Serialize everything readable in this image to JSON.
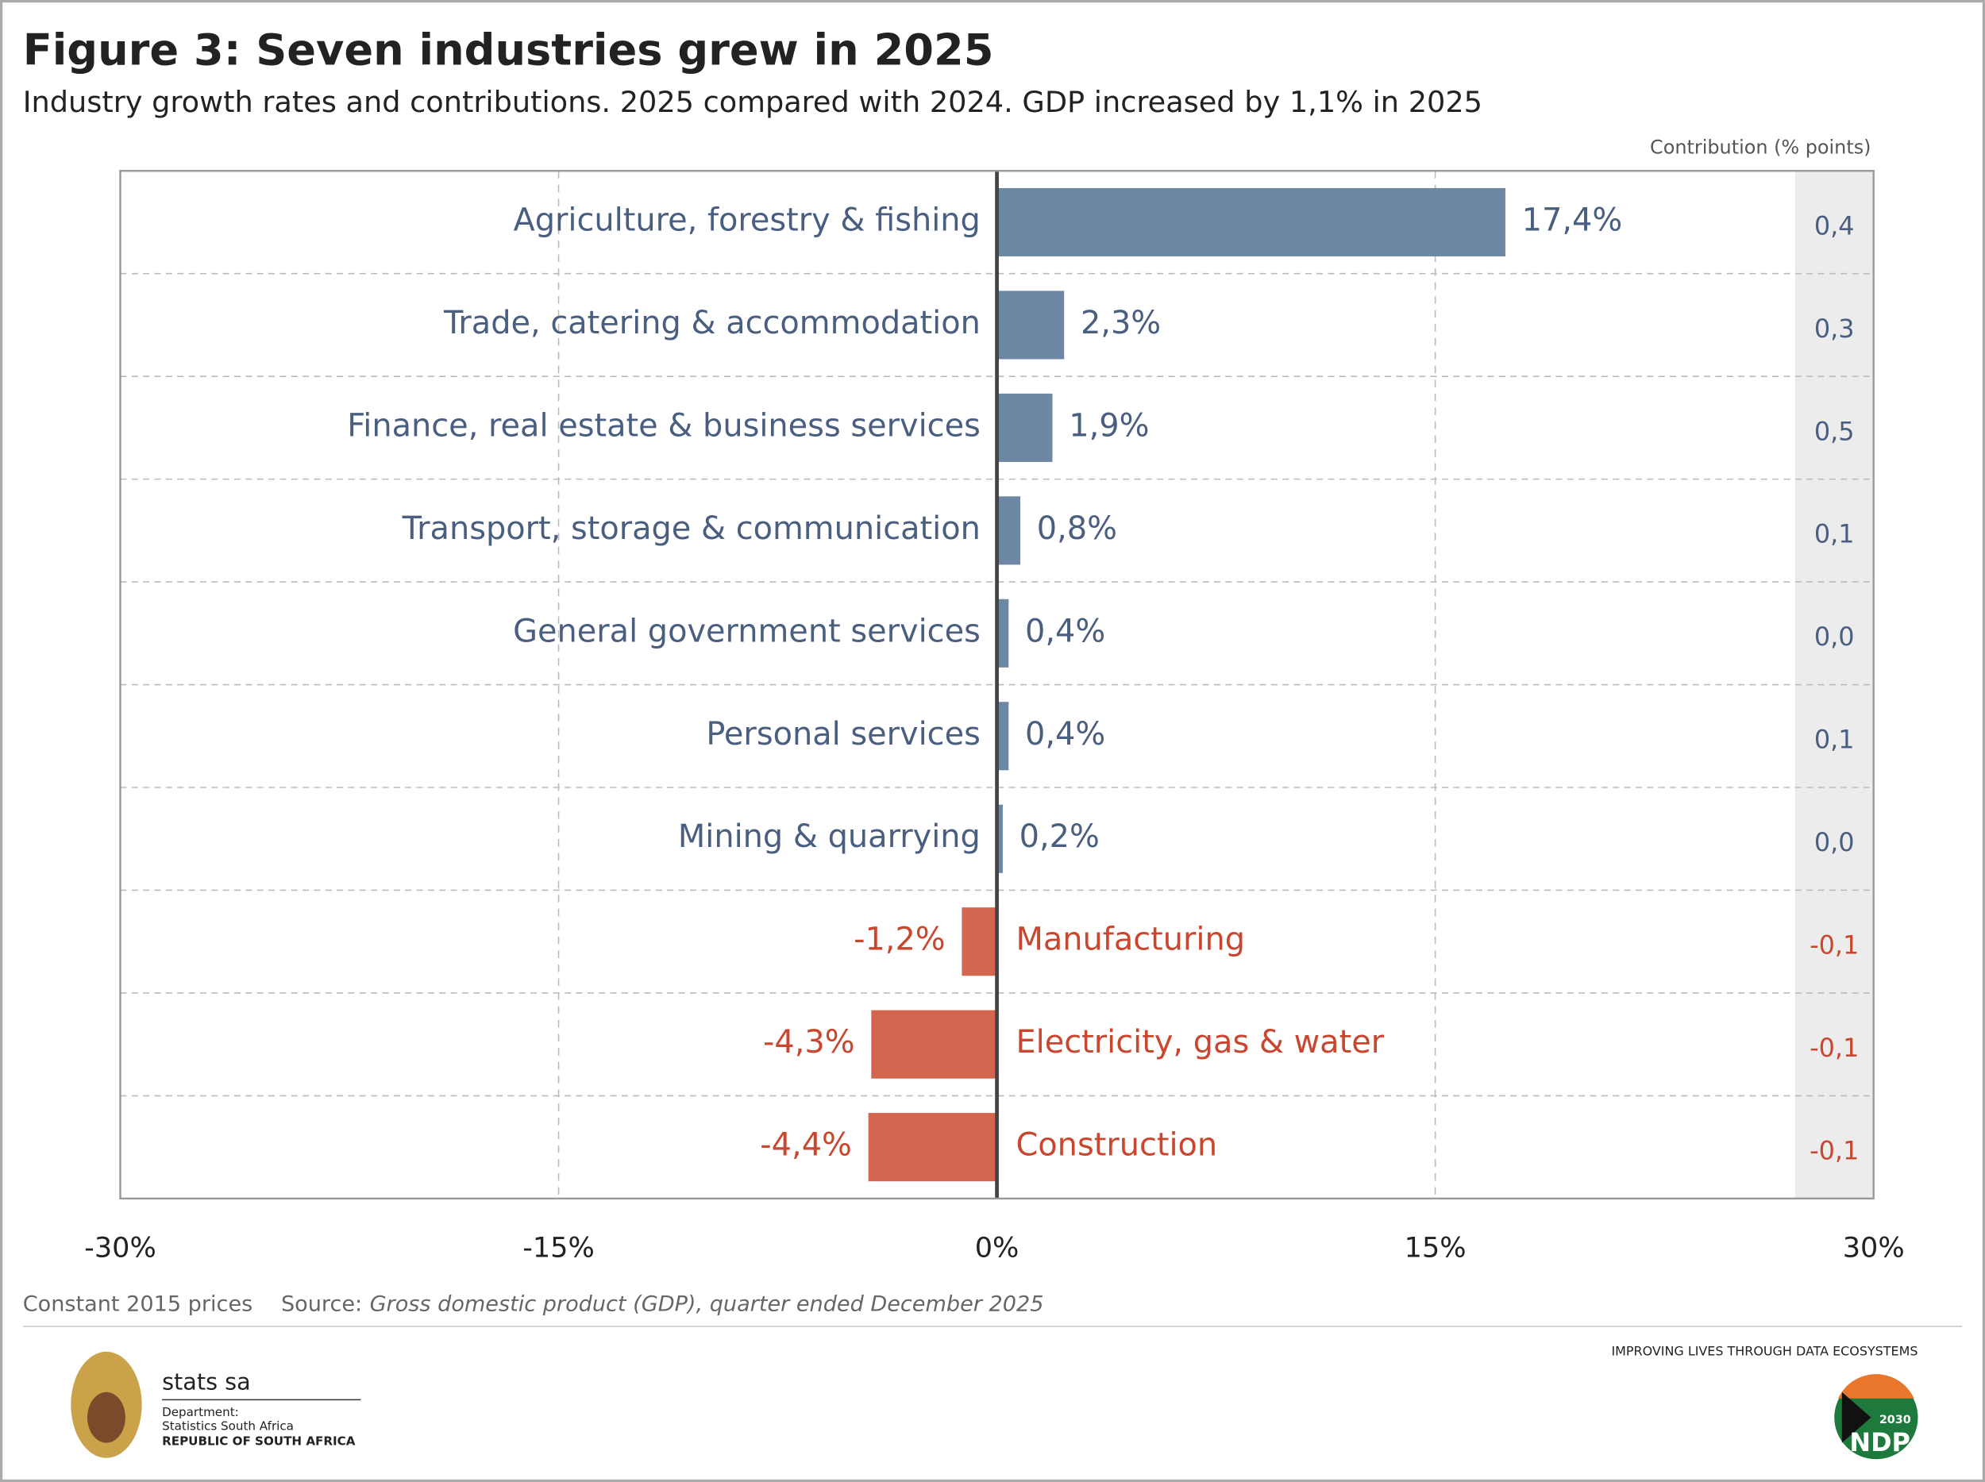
{
  "chart_data": {
    "type": "bar",
    "orientation": "horizontal",
    "title": "Figure 3: Seven industries grew in 2025",
    "subtitle": "Industry growth rates and contributions. 2025 compared with 2024. GDP increased by 1,1% in 2025",
    "contribution_header": "Contribution (% points)",
    "categories": [
      "Agriculture, forestry & fishing",
      "Trade, catering & accommodation",
      "Finance, real estate & business services",
      "Transport, storage & communication",
      "General government services",
      "Personal services",
      "Mining & quarrying",
      "Manufacturing",
      "Electricity, gas & water",
      "Construction"
    ],
    "values": [
      17.4,
      2.3,
      1.9,
      0.8,
      0.4,
      0.4,
      0.2,
      -1.2,
      -4.3,
      -4.4
    ],
    "value_labels": [
      "17,4%",
      "2,3%",
      "1,9%",
      "0,8%",
      "0,4%",
      "0,4%",
      "0,2%",
      "-1,2%",
      "-4,3%",
      "-4,4%"
    ],
    "positive_color": "#6e87a5",
    "negative_color": "#d4654f",
    "contributions": {
      "values": [
        0.4,
        0.3,
        0.5,
        0.1,
        0.0,
        0.1,
        0.0,
        -0.1,
        -0.1,
        -0.1
      ],
      "value_labels": [
        "0,4",
        "0,3",
        "0,5",
        "0,1",
        "0,0",
        "0,1",
        "0,0",
        "-0,1",
        "-0,1",
        "-0,1"
      ]
    },
    "xlim": [
      -30,
      30
    ],
    "xticks": [
      {
        "value": -30,
        "label": "-30%"
      },
      {
        "value": -15,
        "label": "-15%"
      },
      {
        "value": 0,
        "label": "0%"
      },
      {
        "value": 15,
        "label": "15%"
      },
      {
        "value": 30,
        "label": "30%"
      }
    ],
    "grid": true,
    "note": "Constant 2015 prices",
    "source_label": "Source:",
    "source": "Gross domestic product (GDP), quarter ended December 2025"
  },
  "footer": {
    "org": "stats sa",
    "dept": "Department:",
    "dept_name": "Statistics South Africa",
    "country": "REPUBLIC OF SOUTH AFRICA",
    "tagline": "IMPROVING LIVES THROUGH DATA ECOSYSTEMS",
    "badge_year": "2030",
    "badge": "NDP"
  }
}
